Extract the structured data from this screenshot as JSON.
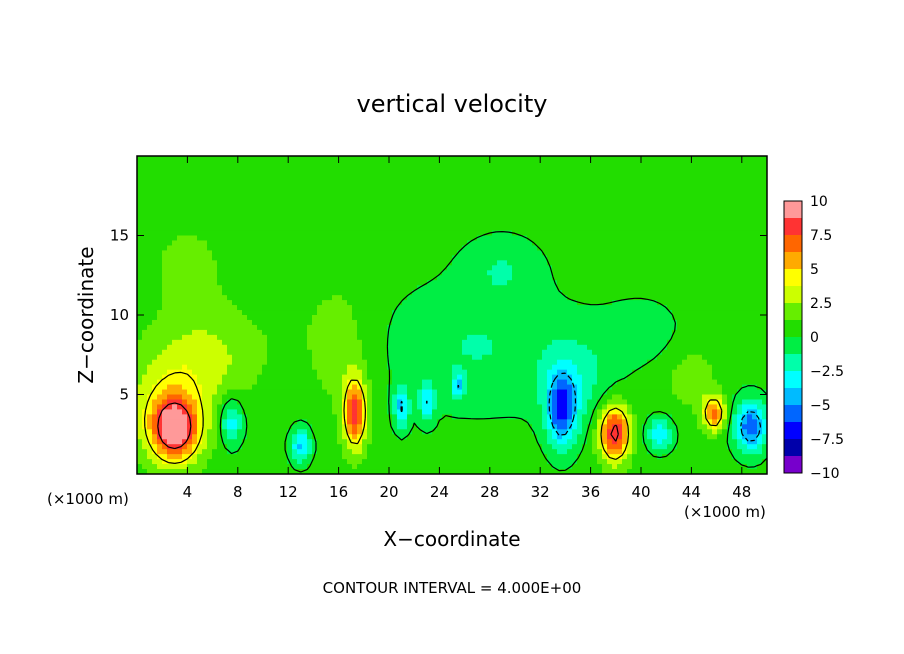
{
  "chart_data": {
    "type": "heatmap",
    "title": "vertical velocity",
    "xlabel": "X−coordinate",
    "ylabel": "Z−coordinate",
    "x_unit_left": "(×1000 m)",
    "x_unit_right": "(×1000 m)",
    "footer": "CONTOUR INTERVAL = 4.000E+00",
    "xlim": [
      0,
      50
    ],
    "ylim": [
      0,
      20
    ],
    "x_ticks": [
      4,
      8,
      12,
      16,
      20,
      24,
      28,
      32,
      36,
      40,
      44,
      48
    ],
    "x_tick_labels": [
      "4",
      "8",
      "12",
      "16",
      "20",
      "24",
      "28",
      "32",
      "36",
      "40",
      "44",
      "48"
    ],
    "y_ticks": [
      5,
      10,
      15
    ],
    "y_tick_labels": [
      "5",
      "10",
      "15"
    ],
    "background_value": 0.5,
    "features": [
      {
        "x": 3,
        "z": 2.8,
        "sx": 1.8,
        "sz": 1.9,
        "v": 9
      },
      {
        "x": 2.5,
        "z": 4.5,
        "sx": 3.5,
        "sz": 3.5,
        "v": 3
      },
      {
        "x": 6,
        "z": 7.5,
        "sx": 4,
        "sz": 3,
        "v": 2
      },
      {
        "x": 17.3,
        "z": 3.8,
        "sx": 0.9,
        "sz": 2.2,
        "v": 7.5
      },
      {
        "x": 16,
        "z": 8,
        "sx": 2.5,
        "sz": 4,
        "v": 1.5
      },
      {
        "x": 37.9,
        "z": 2.6,
        "sx": 1.2,
        "sz": 1.8,
        "v": 8.5
      },
      {
        "x": 45.8,
        "z": 3.8,
        "sx": 0.9,
        "sz": 1.1,
        "v": 6
      },
      {
        "x": 7.5,
        "z": 3.3,
        "sx": 0.9,
        "sz": 1.5,
        "v": -4
      },
      {
        "x": 13,
        "z": 1.8,
        "sx": 0.8,
        "sz": 1.1,
        "v": -4.5
      },
      {
        "x": 33.7,
        "z": 4,
        "sx": 1.2,
        "sz": 2.3,
        "v": -6.5
      },
      {
        "x": 48.7,
        "z": 3,
        "sx": 1.3,
        "sz": 1.6,
        "v": -6.5
      },
      {
        "x": 41.5,
        "z": 2.5,
        "sx": 1,
        "sz": 1,
        "v": -4
      },
      {
        "x": 21,
        "z": 4.2,
        "sx": 0.6,
        "sz": 1.3,
        "v": -4.5
      },
      {
        "x": 23,
        "z": 4.5,
        "sx": 0.6,
        "sz": 1.2,
        "v": -4
      },
      {
        "x": 25.5,
        "z": 5.5,
        "sx": 0.5,
        "sz": 0.8,
        "v": -3.5
      },
      {
        "x": 27,
        "z": 8,
        "sx": 7,
        "sz": 4,
        "v": -1.8
      },
      {
        "x": 35,
        "z": 6,
        "sx": 3,
        "sz": 3,
        "v": -2
      },
      {
        "x": 29,
        "z": 13,
        "sx": 3,
        "sz": 2,
        "v": -1.5
      },
      {
        "x": 40,
        "z": 9,
        "sx": 3,
        "sz": 2,
        "v": -1.3
      },
      {
        "x": 12,
        "z": 10,
        "sx": 2.5,
        "sz": 3,
        "v": 0.3
      },
      {
        "x": 44,
        "z": 6,
        "sx": 2,
        "sz": 2,
        "v": 1.5
      },
      {
        "x": 4,
        "z": 13,
        "sx": 3,
        "sz": 3,
        "v": 1.2
      }
    ],
    "colorbar": {
      "min": -10,
      "max": 10,
      "tick_labels": [
        "10",
        "7.5",
        "5",
        "2.5",
        "0",
        "−2.5",
        "−5",
        "−7.5",
        "−10"
      ],
      "colors": [
        "#ff9999",
        "#ff3333",
        "#ff6600",
        "#ffaa00",
        "#ffff00",
        "#ccff00",
        "#66ee00",
        "#22dd00",
        "#00ee44",
        "#00ffaa",
        "#00ffff",
        "#00bbff",
        "#0066ff",
        "#0000ff",
        "#0000aa",
        "#7700cc"
      ]
    }
  }
}
